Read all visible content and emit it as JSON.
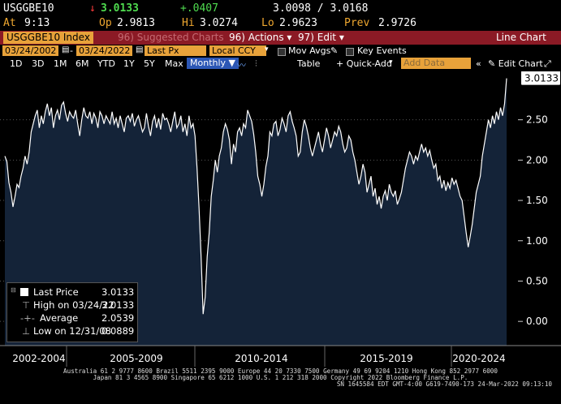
{
  "header": {
    "ticker": "USGGBE10",
    "change_arrow": "↓",
    "last": "3.0133",
    "change": "+.0407",
    "bid_ask": "3.0098 / 3.0168",
    "at_label": "At",
    "at_time": "9:13",
    "open_label": "Op",
    "open": "2.9813",
    "high_label": "Hi",
    "high": "3.0274",
    "low_label": "Lo",
    "low": "2.9623",
    "prev_label": "Prev",
    "prev": "2.9726"
  },
  "menubar": {
    "security": "USGGBE10 Index",
    "suggested": "96) Suggested Charts",
    "actions": "96) Actions",
    "edit": "97) Edit",
    "chart_type": "Line Chart"
  },
  "range": {
    "start": "03/24/2002",
    "end": "03/24/2022",
    "field": "Last Px",
    "currency": "Local CCY",
    "mov_avgs": "Mov Avgs",
    "key_events": "Key Events"
  },
  "toolbar": {
    "periods": [
      "1D",
      "3D",
      "1M",
      "6M",
      "YTD",
      "1Y",
      "5Y",
      "Max"
    ],
    "frequency": "Monthly",
    "table": "Table",
    "quick_add": "+ Quick-Add",
    "add_data_placeholder": "Add Data",
    "edit_chart": "Edit Chart"
  },
  "legend": {
    "last_price_label": "Last Price",
    "last_price": "3.0133",
    "high_label": "High on 03/24/22",
    "high": "3.0133",
    "avg_label": "Average",
    "avg": "2.0539",
    "low_label": "Low on 12/31/08",
    "low": "0.0889"
  },
  "footer": {
    "line1": "Australia 61 2 9777 8600 Brazil 5511 2395 9000 Europe 44 20 7330 7500 Germany 49 69 9204 1210 Hong Kong 852 2977 6000",
    "line2": "Japan 81 3 4565 8900        Singapore 65 6212 1000        U.S. 1 212 318 2000        Copyright 2022 Bloomberg Finance L.P.",
    "line3": "SN 1645584 EDT  GMT-4:00 G619-7490-173 24-Mar-2022 09:13:10"
  },
  "colors": {
    "area_fill": "#142338",
    "line": "#ffffff",
    "accent_amber": "#e8a23a",
    "menubar_red": "#8b1a25",
    "grid": "#555555"
  },
  "chart_data": {
    "type": "area",
    "x_start": "2002-03",
    "x_end": "2022-03",
    "frequency": "monthly",
    "ylim": [
      -0.3,
      3.1
    ],
    "yticks": [
      "0.00",
      "0.50",
      "1.00",
      "1.50",
      "2.00",
      "2.50"
    ],
    "last_value_label": "3.0133",
    "xlabels": [
      "2002-2004",
      "2005-2009",
      "2010-2014",
      "2015-2019",
      "2020-2024"
    ],
    "series": [
      {
        "values": [
          2.05,
          1.98,
          1.72,
          1.6,
          1.42,
          1.55,
          1.7,
          1.66,
          1.8,
          1.9,
          2.05,
          1.95,
          2.1,
          2.35,
          2.45,
          2.55,
          2.62,
          2.4,
          2.55,
          2.45,
          2.6,
          2.7,
          2.55,
          2.65,
          2.4,
          2.55,
          2.62,
          2.5,
          2.68,
          2.72,
          2.58,
          2.48,
          2.6,
          2.55,
          2.52,
          2.62,
          2.45,
          2.3,
          2.5,
          2.65,
          2.55,
          2.52,
          2.6,
          2.45,
          2.58,
          2.52,
          2.4,
          2.6,
          2.55,
          2.45,
          2.55,
          2.5,
          2.45,
          2.6,
          2.45,
          2.52,
          2.4,
          2.55,
          2.45,
          2.35,
          2.52,
          2.55,
          2.48,
          2.58,
          2.42,
          2.5,
          2.55,
          2.45,
          2.35,
          2.4,
          2.58,
          2.42,
          2.3,
          2.48,
          2.55,
          2.4,
          2.52,
          2.38,
          2.58,
          2.5,
          2.52,
          2.45,
          2.35,
          2.48,
          2.6,
          2.4,
          2.45,
          2.55,
          2.35,
          2.45,
          2.3,
          2.55,
          2.4,
          2.45,
          2.3,
          1.9,
          1.4,
          0.8,
          0.09,
          0.3,
          0.8,
          1.1,
          1.55,
          1.75,
          2.0,
          1.85,
          2.05,
          2.15,
          2.35,
          2.45,
          2.38,
          2.25,
          1.95,
          2.2,
          2.1,
          2.35,
          2.4,
          2.3,
          2.45,
          2.4,
          2.62,
          2.55,
          2.48,
          2.32,
          2.1,
          1.8,
          1.7,
          1.55,
          1.7,
          1.92,
          2.05,
          2.35,
          2.3,
          2.45,
          2.48,
          2.3,
          2.38,
          2.52,
          2.45,
          2.35,
          2.55,
          2.6,
          2.48,
          2.4,
          2.3,
          2.05,
          2.1,
          2.35,
          2.5,
          2.42,
          2.3,
          2.15,
          2.05,
          2.15,
          2.25,
          2.35,
          2.2,
          2.1,
          2.25,
          2.4,
          2.3,
          2.15,
          2.25,
          2.35,
          2.3,
          2.42,
          2.35,
          2.2,
          2.1,
          2.15,
          2.3,
          2.25,
          2.1,
          2.0,
          1.85,
          1.7,
          1.8,
          1.95,
          1.85,
          1.6,
          1.7,
          1.8,
          1.55,
          1.65,
          1.45,
          1.55,
          1.4,
          1.55,
          1.62,
          1.5,
          1.7,
          1.6,
          1.55,
          1.62,
          1.45,
          1.52,
          1.6,
          1.75,
          1.9,
          2.0,
          2.1,
          2.05,
          1.95,
          2.05,
          2.0,
          2.1,
          2.2,
          2.1,
          2.15,
          2.05,
          2.12,
          2.0,
          1.9,
          1.95,
          1.75,
          1.8,
          1.65,
          1.75,
          1.62,
          1.72,
          1.65,
          1.78,
          1.7,
          1.75,
          1.65,
          1.55,
          1.5,
          1.3,
          1.1,
          0.92,
          1.05,
          1.2,
          1.4,
          1.6,
          1.7,
          1.8,
          2.05,
          2.2,
          2.35,
          2.5,
          2.4,
          2.55,
          2.45,
          2.6,
          2.5,
          2.65,
          2.55,
          2.7,
          3.0133
        ]
      }
    ]
  }
}
